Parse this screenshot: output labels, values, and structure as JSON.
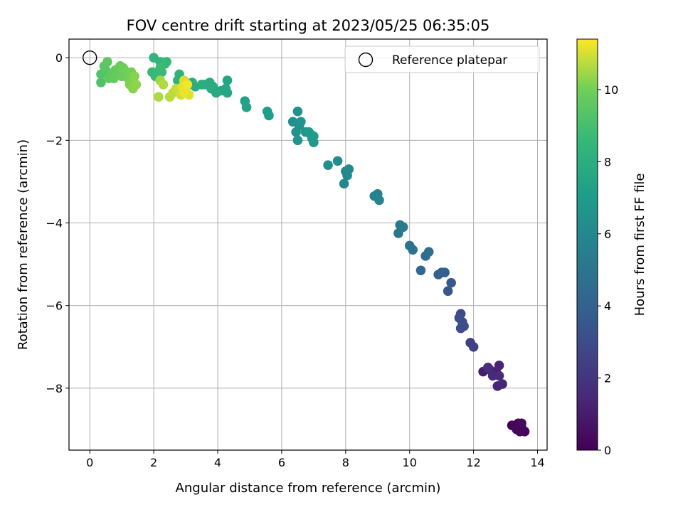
{
  "chart_data": {
    "type": "scatter",
    "title": "FOV centre drift starting at 2023/05/25 06:35:05",
    "xlabel": "Angular distance from reference (arcmin)",
    "ylabel": "Rotation from reference (arcmin)",
    "xlim": [
      -0.65,
      14.3
    ],
    "ylim": [
      -9.5,
      0.45
    ],
    "xticks": [
      "0",
      "2",
      "4",
      "6",
      "8",
      "10",
      "12",
      "14"
    ],
    "yticks": [
      "0",
      "−2",
      "−4",
      "−6",
      "−8"
    ],
    "grid": true,
    "legend": {
      "placement": "top-right",
      "entries": [
        "Reference platepar"
      ]
    },
    "reference_point": {
      "x": 0,
      "y": 0
    },
    "colorbar": {
      "label": "Hours from first FF file",
      "range": [
        0,
        11.4
      ],
      "ticks": [
        "0",
        "2",
        "4",
        "6",
        "8",
        "10"
      ],
      "colormap": "viridis"
    },
    "points": [
      {
        "x": 13.2,
        "y": -8.9,
        "c": 0.05
      },
      {
        "x": 13.4,
        "y": -8.85,
        "c": 0.1
      },
      {
        "x": 13.5,
        "y": -8.95,
        "c": 0.15
      },
      {
        "x": 13.6,
        "y": -9.05,
        "c": 0.2
      },
      {
        "x": 13.45,
        "y": -9.05,
        "c": 0.25
      },
      {
        "x": 13.35,
        "y": -9.0,
        "c": 0.3
      },
      {
        "x": 13.5,
        "y": -8.85,
        "c": 0.35
      },
      {
        "x": 12.3,
        "y": -7.6,
        "c": 1.0
      },
      {
        "x": 12.5,
        "y": -7.55,
        "c": 1.1
      },
      {
        "x": 12.7,
        "y": -7.6,
        "c": 1.2
      },
      {
        "x": 12.8,
        "y": -7.45,
        "c": 1.3
      },
      {
        "x": 12.75,
        "y": -7.95,
        "c": 1.35
      },
      {
        "x": 12.9,
        "y": -7.9,
        "c": 1.4
      },
      {
        "x": 12.6,
        "y": -7.7,
        "c": 1.5
      },
      {
        "x": 12.8,
        "y": -7.7,
        "c": 1.6
      },
      {
        "x": 12.45,
        "y": -7.5,
        "c": 1.7
      },
      {
        "x": 11.9,
        "y": -6.9,
        "c": 2.4
      },
      {
        "x": 12.0,
        "y": -7.0,
        "c": 2.5
      },
      {
        "x": 11.6,
        "y": -6.2,
        "c": 2.8
      },
      {
        "x": 11.65,
        "y": -6.4,
        "c": 2.9
      },
      {
        "x": 11.6,
        "y": -6.55,
        "c": 3.0
      },
      {
        "x": 11.7,
        "y": -6.5,
        "c": 3.05
      },
      {
        "x": 11.55,
        "y": -6.3,
        "c": 3.1
      },
      {
        "x": 11.2,
        "y": -5.65,
        "c": 3.5
      },
      {
        "x": 11.3,
        "y": -5.45,
        "c": 3.6
      },
      {
        "x": 11.0,
        "y": -5.2,
        "c": 3.8
      },
      {
        "x": 11.1,
        "y": -5.2,
        "c": 3.9
      },
      {
        "x": 10.9,
        "y": -5.25,
        "c": 4.0
      },
      {
        "x": 10.35,
        "y": -5.15,
        "c": 4.3
      },
      {
        "x": 10.5,
        "y": -4.8,
        "c": 4.5
      },
      {
        "x": 10.6,
        "y": -4.7,
        "c": 4.6
      },
      {
        "x": 10.0,
        "y": -4.55,
        "c": 4.8
      },
      {
        "x": 10.1,
        "y": -4.65,
        "c": 4.9
      },
      {
        "x": 9.65,
        "y": -4.25,
        "c": 5.1
      },
      {
        "x": 9.7,
        "y": -4.05,
        "c": 5.2
      },
      {
        "x": 9.8,
        "y": -4.1,
        "c": 5.3
      },
      {
        "x": 8.9,
        "y": -3.35,
        "c": 5.6
      },
      {
        "x": 9.0,
        "y": -3.3,
        "c": 5.7
      },
      {
        "x": 9.05,
        "y": -3.45,
        "c": 5.8
      },
      {
        "x": 7.95,
        "y": -3.05,
        "c": 5.9
      },
      {
        "x": 8.0,
        "y": -2.75,
        "c": 6.0
      },
      {
        "x": 8.05,
        "y": -2.85,
        "c": 6.05
      },
      {
        "x": 8.1,
        "y": -2.7,
        "c": 6.1
      },
      {
        "x": 7.75,
        "y": -2.5,
        "c": 6.2
      },
      {
        "x": 7.45,
        "y": -2.6,
        "c": 6.3
      },
      {
        "x": 6.35,
        "y": -1.55,
        "c": 6.4
      },
      {
        "x": 6.5,
        "y": -1.3,
        "c": 6.45
      },
      {
        "x": 6.55,
        "y": -1.65,
        "c": 6.5
      },
      {
        "x": 6.45,
        "y": -1.8,
        "c": 6.55
      },
      {
        "x": 6.6,
        "y": -1.55,
        "c": 6.6
      },
      {
        "x": 6.5,
        "y": -2.0,
        "c": 6.65
      },
      {
        "x": 6.75,
        "y": -1.8,
        "c": 6.7
      },
      {
        "x": 6.9,
        "y": -1.85,
        "c": 6.75
      },
      {
        "x": 7.0,
        "y": -2.05,
        "c": 6.8
      },
      {
        "x": 6.95,
        "y": -1.95,
        "c": 6.85
      },
      {
        "x": 6.85,
        "y": -1.8,
        "c": 6.9
      },
      {
        "x": 7.0,
        "y": -1.9,
        "c": 6.95
      },
      {
        "x": 5.55,
        "y": -1.3,
        "c": 7.1
      },
      {
        "x": 5.6,
        "y": -1.4,
        "c": 7.15
      },
      {
        "x": 4.85,
        "y": -1.05,
        "c": 7.3
      },
      {
        "x": 4.9,
        "y": -1.2,
        "c": 7.35
      },
      {
        "x": 4.3,
        "y": -0.55,
        "c": 7.5
      },
      {
        "x": 4.3,
        "y": -0.85,
        "c": 7.55
      },
      {
        "x": 4.25,
        "y": -0.75,
        "c": 7.6
      },
      {
        "x": 4.1,
        "y": -0.8,
        "c": 7.65
      },
      {
        "x": 3.85,
        "y": -0.7,
        "c": 7.7
      },
      {
        "x": 3.95,
        "y": -0.85,
        "c": 7.75
      },
      {
        "x": 3.75,
        "y": -0.6,
        "c": 7.8
      },
      {
        "x": 3.6,
        "y": -0.65,
        "c": 7.85
      },
      {
        "x": 3.8,
        "y": -0.75,
        "c": 7.9
      },
      {
        "x": 3.5,
        "y": -0.65,
        "c": 7.95
      },
      {
        "x": 3.3,
        "y": -0.7,
        "c": 8.0
      },
      {
        "x": 3.2,
        "y": -0.6,
        "c": 8.05
      },
      {
        "x": 3.1,
        "y": -0.65,
        "c": 8.1
      },
      {
        "x": 2.8,
        "y": -0.4,
        "c": 8.2
      },
      {
        "x": 2.75,
        "y": -0.55,
        "c": 8.25
      },
      {
        "x": 2.0,
        "y": 0.0,
        "c": 8.4
      },
      {
        "x": 2.2,
        "y": -0.1,
        "c": 8.45
      },
      {
        "x": 2.35,
        "y": -0.15,
        "c": 8.5
      },
      {
        "x": 2.4,
        "y": -0.1,
        "c": 8.55
      },
      {
        "x": 1.95,
        "y": -0.35,
        "c": 8.6
      },
      {
        "x": 2.05,
        "y": -0.45,
        "c": 8.65
      },
      {
        "x": 2.25,
        "y": -0.35,
        "c": 8.7
      },
      {
        "x": 2.2,
        "y": -0.25,
        "c": 8.75
      },
      {
        "x": 0.35,
        "y": -0.6,
        "c": 9.2
      },
      {
        "x": 0.35,
        "y": -0.4,
        "c": 9.3
      },
      {
        "x": 0.5,
        "y": -0.3,
        "c": 9.4
      },
      {
        "x": 0.45,
        "y": -0.2,
        "c": 9.5
      },
      {
        "x": 0.55,
        "y": -0.1,
        "c": 9.55
      },
      {
        "x": 0.6,
        "y": -0.5,
        "c": 9.6
      },
      {
        "x": 0.7,
        "y": -0.4,
        "c": 9.65
      },
      {
        "x": 0.8,
        "y": -0.3,
        "c": 9.7
      },
      {
        "x": 0.75,
        "y": -0.5,
        "c": 9.75
      },
      {
        "x": 0.95,
        "y": -0.2,
        "c": 9.8
      },
      {
        "x": 1.0,
        "y": -0.45,
        "c": 9.85
      },
      {
        "x": 1.05,
        "y": -0.25,
        "c": 9.9
      },
      {
        "x": 1.15,
        "y": -0.35,
        "c": 9.95
      },
      {
        "x": 1.2,
        "y": -0.5,
        "c": 10.0
      },
      {
        "x": 1.3,
        "y": -0.35,
        "c": 10.05
      },
      {
        "x": 1.35,
        "y": -0.55,
        "c": 10.1
      },
      {
        "x": 1.25,
        "y": -0.65,
        "c": 10.15
      },
      {
        "x": 1.4,
        "y": -0.45,
        "c": 10.2
      },
      {
        "x": 1.35,
        "y": -0.75,
        "c": 10.25
      },
      {
        "x": 1.45,
        "y": -0.65,
        "c": 10.3
      },
      {
        "x": 2.2,
        "y": -0.55,
        "c": 10.5
      },
      {
        "x": 2.15,
        "y": -0.95,
        "c": 10.6
      },
      {
        "x": 2.3,
        "y": -0.65,
        "c": 10.65
      },
      {
        "x": 2.5,
        "y": -0.95,
        "c": 10.7
      },
      {
        "x": 2.6,
        "y": -0.85,
        "c": 10.75
      },
      {
        "x": 2.7,
        "y": -0.75,
        "c": 10.8
      },
      {
        "x": 2.8,
        "y": -0.8,
        "c": 10.9
      },
      {
        "x": 2.85,
        "y": -0.9,
        "c": 10.95
      },
      {
        "x": 2.95,
        "y": -0.55,
        "c": 11.0
      },
      {
        "x": 3.0,
        "y": -0.75,
        "c": 11.05
      },
      {
        "x": 3.1,
        "y": -0.9,
        "c": 11.1
      },
      {
        "x": 2.9,
        "y": -0.7,
        "c": 11.15
      },
      {
        "x": 2.95,
        "y": -0.85,
        "c": 11.2
      },
      {
        "x": 3.05,
        "y": -0.65,
        "c": 11.3
      }
    ]
  }
}
